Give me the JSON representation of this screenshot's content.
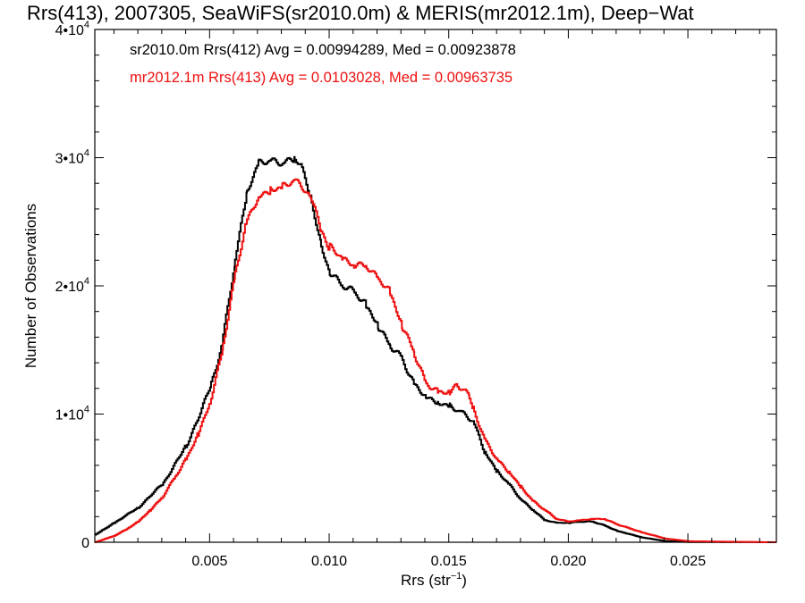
{
  "chart_data": {
    "type": "line",
    "title": "Rrs(413), 2007305, SeaWiFS(sr2010.0m) & MERIS(mr2012.1m), Deep−Wat",
    "xlabel_main": "Rrs (str",
    "xlabel_sup": "−1",
    "xlabel_end": ")",
    "ylabel": "Number of Observations",
    "xlim": [
      0.0002,
      0.0287
    ],
    "ylim": [
      0,
      40000
    ],
    "x_ticks": [
      {
        "value": 0.005,
        "label": "0.005"
      },
      {
        "value": 0.01,
        "label": "0.010"
      },
      {
        "value": 0.015,
        "label": "0.015"
      },
      {
        "value": 0.02,
        "label": "0.020"
      },
      {
        "value": 0.025,
        "label": "0.025"
      }
    ],
    "y_ticks": [
      {
        "value": 0,
        "label": "0",
        "sup": ""
      },
      {
        "value": 10000,
        "label": "1•10",
        "sup": "4"
      },
      {
        "value": 20000,
        "label": "2•10",
        "sup": "4"
      },
      {
        "value": 30000,
        "label": "3•10",
        "sup": "4"
      },
      {
        "value": 40000,
        "label": "4•10",
        "sup": "4"
      }
    ],
    "annotations": [
      {
        "text": "sr2010.0m Rrs(412) Avg = 0.00994289, Med = 0.00923878",
        "color": "#000000"
      },
      {
        "text": "mr2012.1m Rrs(413) Avg = 0.0103028, Med = 0.00963735",
        "color": "#ee1111"
      }
    ],
    "series": [
      {
        "color": "#000000",
        "points": [
          [
            0.0002,
            600
          ],
          [
            0.001,
            1500
          ],
          [
            0.002,
            2700
          ],
          [
            0.003,
            4500
          ],
          [
            0.004,
            7500
          ],
          [
            0.005,
            12000
          ],
          [
            0.0055,
            15500
          ],
          [
            0.006,
            21500
          ],
          [
            0.0065,
            27000
          ],
          [
            0.007,
            29500
          ],
          [
            0.0075,
            29700
          ],
          [
            0.008,
            29500
          ],
          [
            0.0085,
            29800
          ],
          [
            0.0088,
            29300
          ],
          [
            0.0092,
            27000
          ],
          [
            0.0096,
            23500
          ],
          [
            0.01,
            21000
          ],
          [
            0.0105,
            20000
          ],
          [
            0.011,
            19500
          ],
          [
            0.0115,
            18500
          ],
          [
            0.012,
            17000
          ],
          [
            0.0125,
            15500
          ],
          [
            0.013,
            14500
          ],
          [
            0.0135,
            12500
          ],
          [
            0.014,
            11500
          ],
          [
            0.0145,
            11000
          ],
          [
            0.015,
            10700
          ],
          [
            0.0155,
            10200
          ],
          [
            0.016,
            9500
          ],
          [
            0.0165,
            7000
          ],
          [
            0.017,
            5500
          ],
          [
            0.0175,
            4500
          ],
          [
            0.018,
            3300
          ],
          [
            0.0185,
            2500
          ],
          [
            0.019,
            1700
          ],
          [
            0.0195,
            1500
          ],
          [
            0.02,
            1500
          ],
          [
            0.0205,
            1600
          ],
          [
            0.021,
            1600
          ],
          [
            0.0215,
            1300
          ],
          [
            0.022,
            900
          ],
          [
            0.023,
            400
          ],
          [
            0.024,
            100
          ],
          [
            0.025,
            20
          ],
          [
            0.0287,
            0
          ]
        ]
      },
      {
        "color": "#ee1111",
        "points": [
          [
            0.0002,
            0
          ],
          [
            0.001,
            500
          ],
          [
            0.0015,
            1000
          ],
          [
            0.002,
            1600
          ],
          [
            0.0025,
            2500
          ],
          [
            0.003,
            3500
          ],
          [
            0.0035,
            5000
          ],
          [
            0.004,
            6500
          ],
          [
            0.0045,
            8500
          ],
          [
            0.005,
            11000
          ],
          [
            0.0055,
            15000
          ],
          [
            0.006,
            20500
          ],
          [
            0.0065,
            25000
          ],
          [
            0.007,
            27000
          ],
          [
            0.0075,
            27500
          ],
          [
            0.008,
            27700
          ],
          [
            0.0085,
            28200
          ],
          [
            0.0088,
            27800
          ],
          [
            0.0092,
            27000
          ],
          [
            0.0096,
            24500
          ],
          [
            0.01,
            23000
          ],
          [
            0.0105,
            22000
          ],
          [
            0.011,
            21500
          ],
          [
            0.0115,
            21500
          ],
          [
            0.012,
            20500
          ],
          [
            0.0125,
            19500
          ],
          [
            0.013,
            17000
          ],
          [
            0.0135,
            15000
          ],
          [
            0.014,
            12500
          ],
          [
            0.0145,
            11800
          ],
          [
            0.015,
            11800
          ],
          [
            0.0153,
            12400
          ],
          [
            0.0158,
            11500
          ],
          [
            0.016,
            10500
          ],
          [
            0.0165,
            8000
          ],
          [
            0.017,
            6500
          ],
          [
            0.0175,
            5500
          ],
          [
            0.018,
            4300
          ],
          [
            0.0185,
            3200
          ],
          [
            0.019,
            2500
          ],
          [
            0.0195,
            1800
          ],
          [
            0.02,
            1600
          ],
          [
            0.0205,
            1700
          ],
          [
            0.021,
            1800
          ],
          [
            0.0215,
            1800
          ],
          [
            0.022,
            1400
          ],
          [
            0.0225,
            1100
          ],
          [
            0.023,
            800
          ],
          [
            0.024,
            300
          ],
          [
            0.025,
            80
          ],
          [
            0.0287,
            0
          ]
        ]
      }
    ]
  }
}
